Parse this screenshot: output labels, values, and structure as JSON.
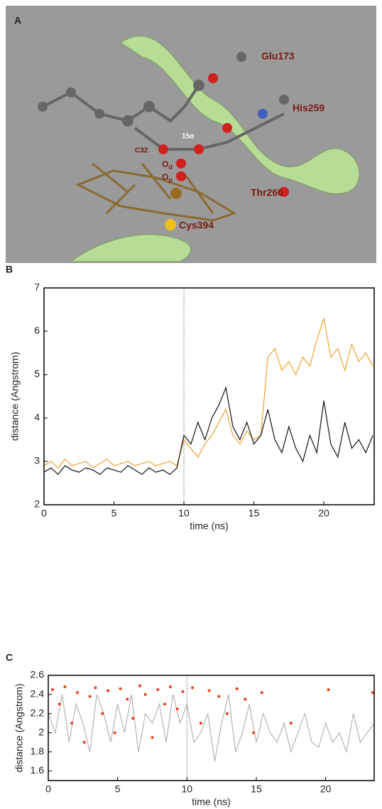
{
  "panel_a": {
    "panel": "A",
    "labels": {
      "glu": "Glu173",
      "his": "His259",
      "thr": "Thr260",
      "cys": "Cys394",
      "c32": "C32",
      "h15": "15α"
    },
    "oxygens": [
      {
        "atom": "O",
        "sub": "d"
      },
      {
        "atom": "O",
        "sub": "p"
      }
    ]
  },
  "chart_data": [
    {
      "type": "line",
      "panel": "B",
      "xlabel": "time (ns)",
      "ylabel": "distance (Angstrom)",
      "xlim": [
        0,
        23.6
      ],
      "ylim": [
        2,
        7
      ],
      "xticks": [
        0,
        5,
        10,
        15,
        20
      ],
      "yticks": [
        2,
        3,
        4,
        5,
        6,
        7
      ],
      "vline": 10,
      "x": [
        0,
        0.5,
        1,
        1.5,
        2,
        2.5,
        3,
        3.5,
        4,
        4.5,
        5,
        5.5,
        6,
        6.5,
        7,
        7.5,
        8,
        8.5,
        9,
        9.5,
        10,
        10.5,
        11,
        11.5,
        12,
        12.5,
        13,
        13.5,
        14,
        14.5,
        15,
        15.5,
        16,
        16.5,
        17,
        17.5,
        18,
        18.5,
        19,
        19.5,
        20,
        20.5,
        21,
        21.5,
        22,
        22.5,
        23,
        23.5
      ],
      "series": [
        {
          "type": "line",
          "color": "#f0a030",
          "values": [
            2.9,
            3.0,
            2.85,
            3.05,
            2.9,
            2.95,
            3.0,
            2.85,
            2.95,
            3.05,
            2.9,
            2.95,
            3.0,
            2.9,
            2.95,
            3.0,
            2.9,
            2.95,
            3.0,
            2.9,
            3.5,
            3.3,
            3.1,
            3.4,
            3.6,
            3.9,
            4.2,
            3.6,
            3.4,
            3.7,
            3.5,
            3.6,
            5.4,
            5.6,
            5.1,
            5.3,
            5.0,
            5.4,
            5.2,
            5.8,
            6.3,
            5.4,
            5.6,
            5.1,
            5.7,
            5.3,
            5.5,
            5.2
          ]
        },
        {
          "type": "line",
          "color": "#111111",
          "values": [
            2.75,
            2.85,
            2.7,
            2.9,
            2.8,
            2.75,
            2.85,
            2.8,
            2.7,
            2.85,
            2.8,
            2.75,
            2.9,
            2.8,
            2.7,
            2.85,
            2.75,
            2.8,
            2.7,
            2.85,
            3.6,
            3.4,
            3.9,
            3.5,
            4.0,
            4.3,
            4.7,
            3.8,
            3.5,
            3.9,
            3.4,
            3.6,
            4.2,
            3.5,
            3.2,
            3.8,
            3.3,
            3.0,
            3.6,
            3.2,
            4.4,
            3.4,
            3.1,
            3.9,
            3.3,
            3.5,
            3.2,
            3.6
          ]
        }
      ]
    },
    {
      "type": "line",
      "panel": "C",
      "xlabel": "time (ns)",
      "ylabel": "distance (Angstrom)",
      "xlim": [
        0,
        23.5
      ],
      "ylim": [
        1.5,
        2.6
      ],
      "xticks": [
        0,
        5,
        10,
        15,
        20
      ],
      "yticks": [
        1.6,
        1.8,
        2,
        2.2,
        2.4,
        2.6
      ],
      "vline": 10,
      "x": [
        0,
        0.5,
        1,
        1.5,
        2,
        2.5,
        3,
        3.5,
        4,
        4.5,
        5,
        5.5,
        6,
        6.5,
        7,
        7.5,
        8,
        8.5,
        9,
        9.5,
        10,
        10.5,
        11,
        11.5,
        12,
        12.5,
        13,
        13.5,
        14,
        14.5,
        15,
        15.5,
        16,
        16.5,
        17,
        17.5,
        18,
        18.5,
        19,
        19.5,
        20,
        20.5,
        21,
        21.5,
        22,
        22.5,
        23,
        23.5
      ],
      "series": [
        {
          "type": "line",
          "color": "#b4b4b4",
          "values": [
            2.2,
            2.0,
            2.4,
            1.9,
            2.3,
            2.1,
            1.8,
            2.4,
            2.2,
            1.9,
            2.3,
            2.0,
            2.4,
            1.8,
            2.2,
            2.1,
            2.3,
            1.9,
            2.4,
            2.1,
            2.3,
            1.9,
            2.0,
            2.2,
            1.7,
            2.1,
            2.4,
            1.8,
            2.0,
            2.3,
            1.9,
            2.2,
            2.0,
            1.9,
            2.1,
            1.8,
            2.0,
            2.2,
            1.9,
            1.85,
            2.1,
            1.9,
            2.0,
            1.8,
            2.2,
            1.9,
            2.0,
            2.1
          ]
        },
        {
          "type": "scatter",
          "color": "#e8401c",
          "x": [
            0.3,
            0.8,
            1.2,
            1.7,
            2.1,
            2.6,
            3.0,
            3.4,
            3.9,
            4.3,
            4.8,
            5.2,
            5.7,
            6.1,
            6.6,
            7.0,
            7.5,
            7.9,
            8.4,
            8.8,
            9.3,
            9.7,
            10.4,
            11.0,
            11.6,
            12.3,
            12.9,
            13.6,
            14.2,
            14.8,
            15.4,
            17.5,
            20.2,
            23.4
          ],
          "values": [
            2.45,
            2.3,
            2.48,
            2.1,
            2.42,
            1.9,
            2.38,
            2.47,
            2.2,
            2.44,
            2.0,
            2.46,
            2.35,
            2.15,
            2.49,
            2.4,
            1.95,
            2.45,
            2.3,
            2.48,
            2.25,
            2.43,
            2.47,
            2.1,
            2.44,
            2.38,
            2.2,
            2.46,
            2.35,
            2.0,
            2.42,
            2.1,
            2.45,
            2.42
          ]
        }
      ]
    }
  ]
}
